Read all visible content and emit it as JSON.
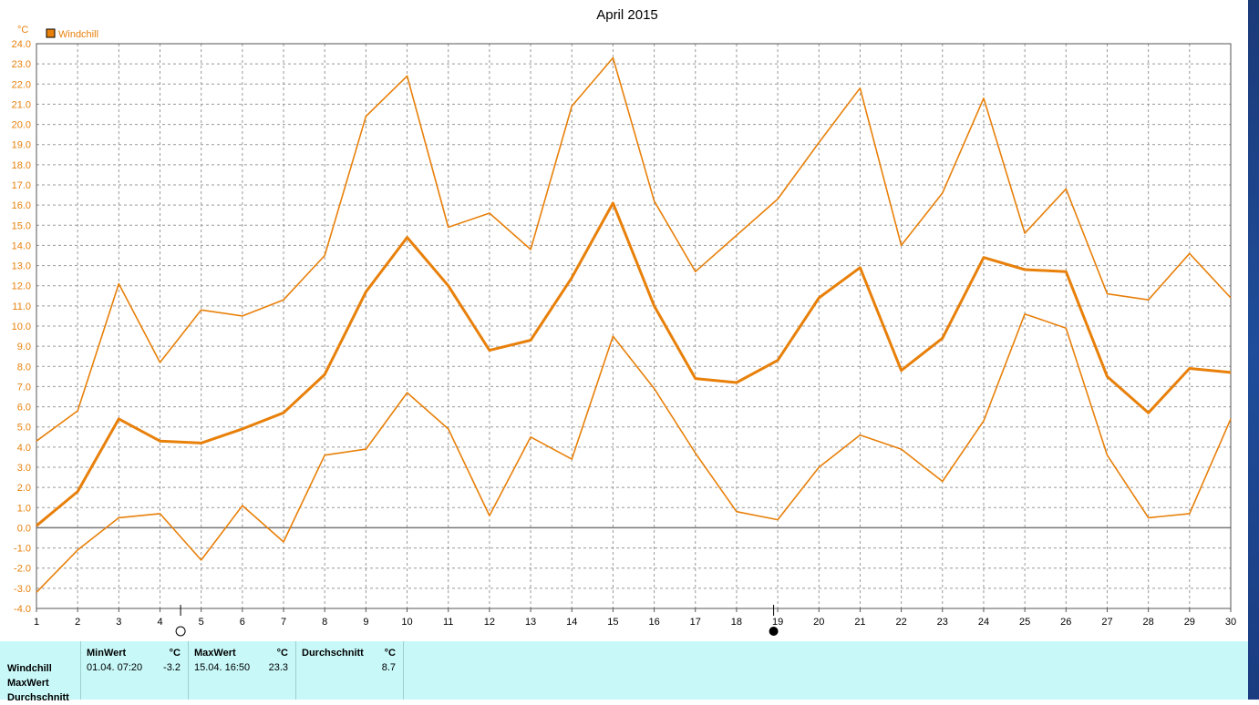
{
  "chart_data": {
    "type": "line",
    "title": "April 2015",
    "ylabel": "°C",
    "ylim": [
      -4,
      24
    ],
    "yticks": [
      "24.0",
      "23.0",
      "22.0",
      "21.0",
      "20.0",
      "19.0",
      "18.0",
      "17.0",
      "16.0",
      "15.0",
      "14.0",
      "13.0",
      "12.0",
      "11.0",
      "10.0",
      "9.0",
      "8.0",
      "7.0",
      "6.0",
      "5.0",
      "4.0",
      "3.0",
      "2.0",
      "1.0",
      "0.0",
      "-1.0",
      "-2.0",
      "-3.0",
      "-4.0"
    ],
    "x": [
      1,
      2,
      3,
      4,
      5,
      6,
      7,
      8,
      9,
      10,
      11,
      12,
      13,
      14,
      15,
      16,
      17,
      18,
      19,
      20,
      21,
      22,
      23,
      24,
      25,
      26,
      27,
      28,
      29,
      30
    ],
    "grid": true,
    "legend": [
      "Windchill"
    ],
    "series": [
      {
        "name": "Windchill",
        "role": "max",
        "values": [
          4.3,
          5.8,
          12.1,
          8.2,
          10.8,
          10.5,
          11.3,
          13.5,
          20.4,
          22.4,
          14.9,
          15.6,
          13.8,
          20.9,
          23.3,
          16.2,
          12.7,
          14.5,
          16.3,
          19.1,
          21.8,
          14.0,
          16.6,
          21.3,
          14.6,
          16.8,
          11.6,
          11.3,
          13.6,
          11.4
        ]
      },
      {
        "name": "Windchill",
        "role": "avg",
        "values": [
          0.1,
          1.8,
          5.4,
          4.3,
          4.2,
          4.9,
          5.7,
          7.6,
          11.7,
          14.4,
          12.0,
          8.8,
          9.3,
          12.4,
          16.1,
          11.0,
          7.4,
          7.2,
          8.3,
          11.4,
          12.9,
          7.8,
          9.4,
          13.4,
          12.8,
          12.7,
          7.5,
          5.7,
          7.9,
          7.7
        ]
      },
      {
        "name": "Windchill",
        "role": "min",
        "values": [
          -3.2,
          -1.1,
          0.5,
          0.7,
          -1.6,
          1.1,
          -0.7,
          3.6,
          3.9,
          6.7,
          4.9,
          0.6,
          4.5,
          3.4,
          9.5,
          6.9,
          3.7,
          0.8,
          0.4,
          3.0,
          4.6,
          3.9,
          2.3,
          5.3,
          10.6,
          9.9,
          3.6,
          0.5,
          0.7,
          5.4
        ]
      }
    ],
    "color": "#e8800a",
    "moon_markers": [
      {
        "day": 4.5,
        "phase": "full-moon"
      },
      {
        "day": 18.9,
        "phase": "new-moon"
      }
    ]
  },
  "stats": {
    "row_labels": [
      "Windchill",
      "MaxWert",
      "Durchschnitt"
    ],
    "columns": [
      {
        "header": "MinWert",
        "unit": "°C",
        "datetime": "01.04.  07:20",
        "value": "-3.2"
      },
      {
        "header": "MaxWert",
        "unit": "°C",
        "datetime": "15.04.  16:50",
        "value": "23.3"
      },
      {
        "header": "Durchschnitt",
        "unit": "°C",
        "datetime": "",
        "value": "8.7"
      }
    ]
  }
}
